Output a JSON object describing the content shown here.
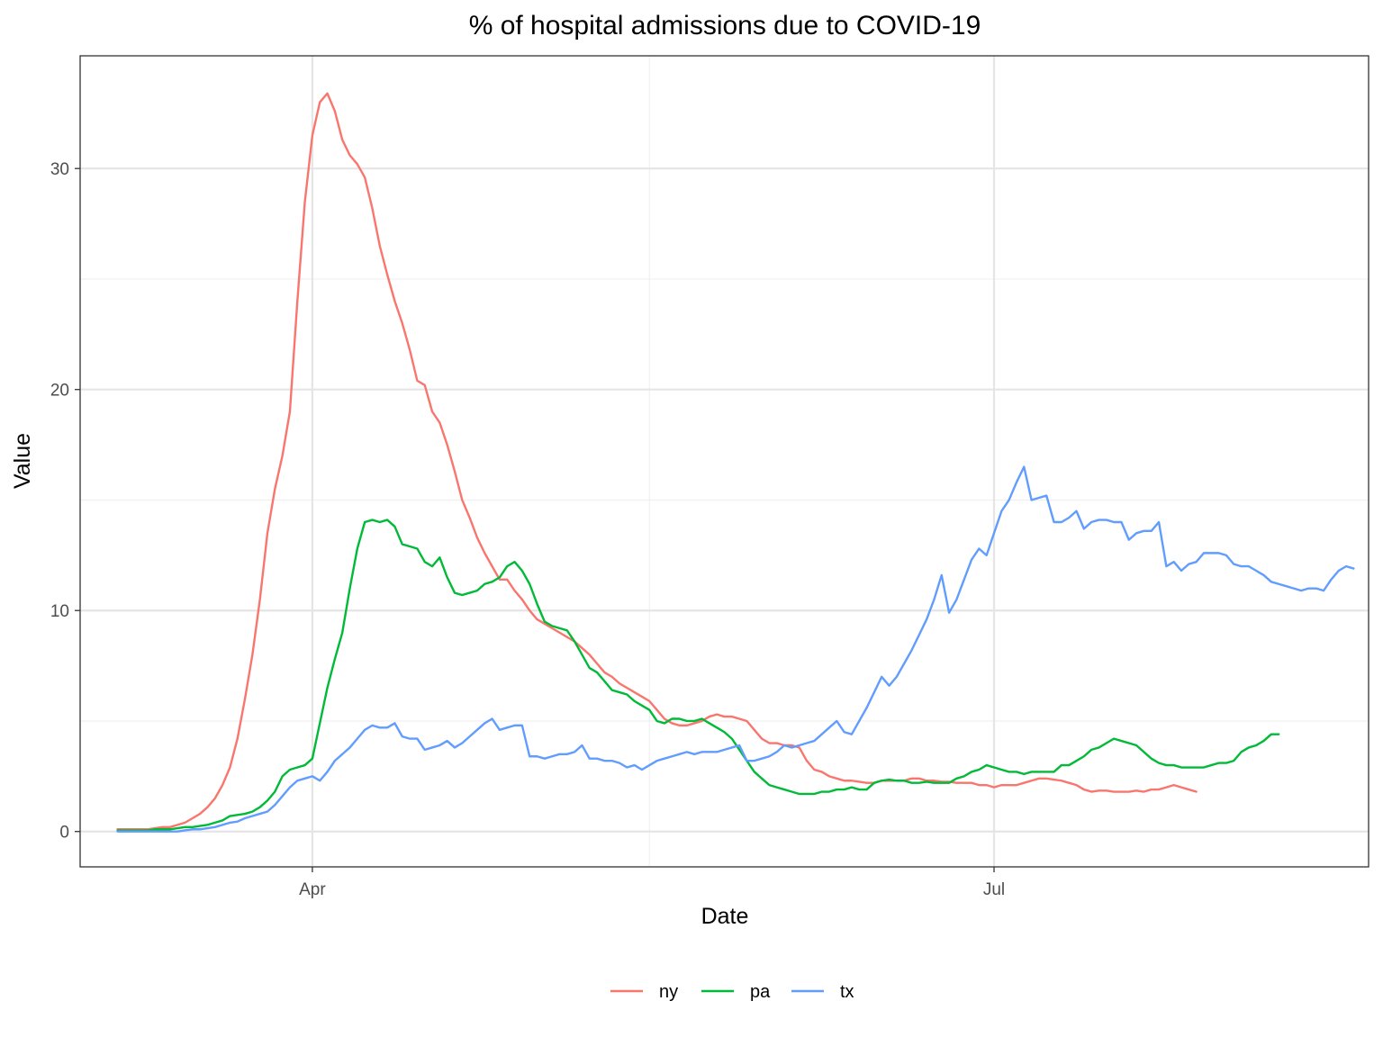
{
  "chart_data": {
    "type": "line",
    "title": "% of hospital admissions due to COVID-19",
    "xlabel": "Date",
    "ylabel": "Value",
    "x_start": "2020-03-06",
    "x_end": "2020-08-15",
    "xlim": [
      "2020-03-01",
      "2020-08-20"
    ],
    "x_ticks": [
      {
        "date": "2020-04-01",
        "label": "Apr"
      },
      {
        "date": "2020-07-01",
        "label": "Jul"
      }
    ],
    "x_minor_ticks": [
      "2020-05-16",
      "2020-08-31"
    ],
    "ylim": [
      -1.6,
      35.1
    ],
    "y_ticks": [
      0,
      10,
      20,
      30
    ],
    "y_minor_ticks": [
      5,
      15,
      25
    ],
    "grid": true,
    "legend_position": "bottom",
    "series": [
      {
        "name": "ny",
        "color": "#F8766D",
        "values": [
          0.1,
          0.1,
          0.1,
          0.1,
          0.1,
          0.15,
          0.2,
          0.2,
          0.3,
          0.4,
          0.6,
          0.8,
          1.1,
          1.5,
          2.1,
          2.9,
          4.2,
          6.0,
          8.0,
          10.5,
          13.5,
          15.5,
          17.0,
          19.0,
          24.0,
          28.5,
          31.5,
          33.0,
          33.4,
          32.6,
          31.3,
          30.6,
          30.2,
          29.6,
          28.2,
          26.5,
          25.2,
          24.0,
          23.0,
          21.8,
          20.4,
          20.2,
          19.0,
          18.5,
          17.5,
          16.3,
          15.0,
          14.2,
          13.3,
          12.6,
          12.0,
          11.4,
          11.4,
          10.9,
          10.5,
          10.0,
          9.6,
          9.4,
          9.2,
          9.0,
          8.8,
          8.6,
          8.3,
          8.0,
          7.6,
          7.2,
          7.0,
          6.7,
          6.5,
          6.3,
          6.1,
          5.9,
          5.5,
          5.1,
          4.9,
          4.8,
          4.8,
          4.9,
          5.0,
          5.2,
          5.3,
          5.2,
          5.2,
          5.1,
          5.0,
          4.6,
          4.2,
          4.0,
          4.0,
          3.9,
          3.9,
          3.8,
          3.2,
          2.8,
          2.7,
          2.5,
          2.4,
          2.3,
          2.3,
          2.25,
          2.2,
          2.2,
          2.3,
          2.3,
          2.3,
          2.3,
          2.4,
          2.4,
          2.3,
          2.3,
          2.25,
          2.25,
          2.2,
          2.2,
          2.2,
          2.1,
          2.1,
          2.0,
          2.1,
          2.1,
          2.1,
          2.2,
          2.3,
          2.4,
          2.4,
          2.35,
          2.3,
          2.2,
          2.1,
          1.9,
          1.8,
          1.85,
          1.85,
          1.8,
          1.8,
          1.8,
          1.85,
          1.8,
          1.9,
          1.9,
          2.0,
          2.1,
          2.0,
          1.9,
          1.8
        ]
      },
      {
        "name": "pa",
        "color": "#00BA38",
        "values": [
          0.05,
          0.05,
          0.05,
          0.05,
          0.05,
          0.1,
          0.1,
          0.1,
          0.15,
          0.2,
          0.2,
          0.25,
          0.3,
          0.4,
          0.5,
          0.7,
          0.75,
          0.8,
          0.9,
          1.1,
          1.4,
          1.8,
          2.5,
          2.8,
          2.9,
          3.0,
          3.3,
          4.9,
          6.5,
          7.8,
          9.0,
          11.0,
          12.8,
          14.0,
          14.1,
          14.0,
          14.1,
          13.8,
          13.0,
          12.9,
          12.8,
          12.2,
          12.0,
          12.4,
          11.5,
          10.8,
          10.7,
          10.8,
          10.9,
          11.2,
          11.3,
          11.5,
          12.0,
          12.2,
          11.8,
          11.2,
          10.3,
          9.5,
          9.3,
          9.2,
          9.1,
          8.6,
          8.0,
          7.4,
          7.2,
          6.8,
          6.4,
          6.3,
          6.2,
          5.9,
          5.7,
          5.5,
          5.0,
          4.9,
          5.1,
          5.1,
          5.0,
          5.0,
          5.1,
          4.9,
          4.7,
          4.5,
          4.2,
          3.7,
          3.2,
          2.7,
          2.4,
          2.1,
          2.0,
          1.9,
          1.8,
          1.7,
          1.7,
          1.7,
          1.8,
          1.8,
          1.9,
          1.9,
          2.0,
          1.9,
          1.9,
          2.2,
          2.3,
          2.35,
          2.3,
          2.3,
          2.2,
          2.2,
          2.25,
          2.2,
          2.2,
          2.2,
          2.4,
          2.5,
          2.7,
          2.8,
          3.0,
          2.9,
          2.8,
          2.7,
          2.7,
          2.6,
          2.7,
          2.7,
          2.7,
          2.7,
          3.0,
          3.0,
          3.2,
          3.4,
          3.7,
          3.8,
          4.0,
          4.2,
          4.1,
          4.0,
          3.9,
          3.6,
          3.3,
          3.1,
          3.0,
          3.0,
          2.9,
          2.9,
          2.9,
          2.9,
          3.0,
          3.1,
          3.1,
          3.2,
          3.6,
          3.8,
          3.9,
          4.1,
          4.4,
          4.4
        ]
      },
      {
        "name": "tx",
        "color": "#619CFF",
        "values": [
          0.0,
          0.0,
          0.0,
          0.0,
          0.0,
          0.0,
          0.0,
          0.0,
          0.0,
          0.05,
          0.1,
          0.1,
          0.15,
          0.2,
          0.3,
          0.4,
          0.45,
          0.6,
          0.7,
          0.8,
          0.9,
          1.2,
          1.6,
          2.0,
          2.3,
          2.4,
          2.5,
          2.3,
          2.7,
          3.2,
          3.5,
          3.8,
          4.2,
          4.6,
          4.8,
          4.7,
          4.7,
          4.9,
          4.3,
          4.2,
          4.2,
          3.7,
          3.8,
          3.9,
          4.1,
          3.8,
          4.0,
          4.3,
          4.6,
          4.9,
          5.1,
          4.6,
          4.7,
          4.8,
          4.8,
          3.4,
          3.4,
          3.3,
          3.4,
          3.5,
          3.5,
          3.6,
          3.9,
          3.3,
          3.3,
          3.2,
          3.2,
          3.1,
          2.9,
          3.0,
          2.8,
          3.0,
          3.2,
          3.3,
          3.4,
          3.5,
          3.6,
          3.5,
          3.6,
          3.6,
          3.6,
          3.7,
          3.8,
          3.9,
          3.2,
          3.2,
          3.3,
          3.4,
          3.6,
          3.9,
          3.8,
          3.9,
          4.0,
          4.1,
          4.4,
          4.7,
          5.0,
          4.5,
          4.4,
          5.0,
          5.6,
          6.3,
          7.0,
          6.6,
          7.0,
          7.6,
          8.2,
          8.9,
          9.6,
          10.5,
          11.6,
          9.9,
          10.5,
          11.4,
          12.3,
          12.8,
          12.5,
          13.5,
          14.5,
          15.0,
          15.8,
          16.5,
          15.0,
          15.1,
          15.2,
          14.0,
          14.0,
          14.2,
          14.5,
          13.7,
          14.0,
          14.1,
          14.1,
          14.0,
          14.0,
          13.2,
          13.5,
          13.6,
          13.6,
          14.0,
          12.0,
          12.2,
          11.8,
          12.1,
          12.2,
          12.6,
          12.6,
          12.6,
          12.5,
          12.1,
          12.0,
          12.0,
          11.8,
          11.6,
          11.3,
          11.2,
          11.1,
          11.0,
          10.9,
          11.0,
          11.0,
          10.9,
          11.4,
          11.8,
          12.0,
          11.9
        ]
      }
    ]
  }
}
